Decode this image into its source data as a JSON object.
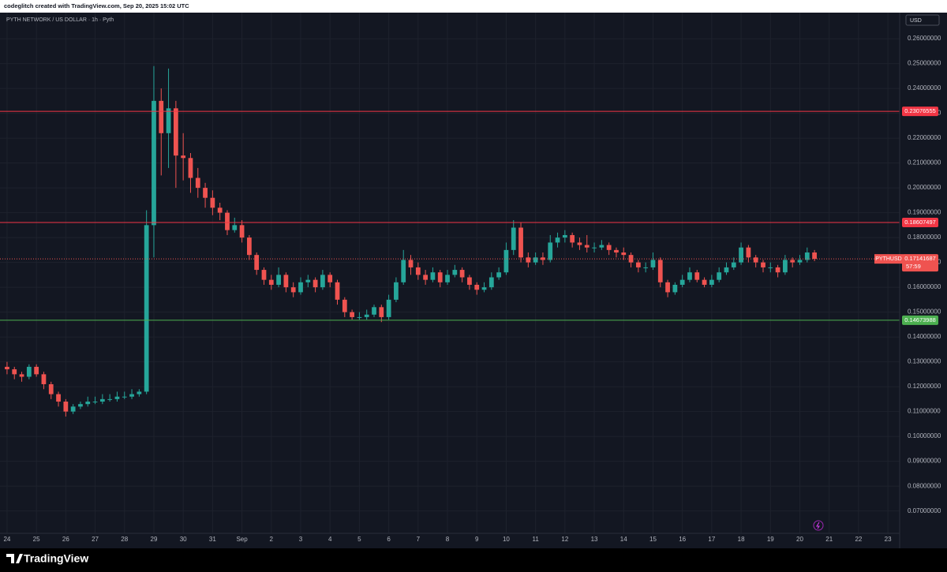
{
  "header": {
    "text": "codeglitch created with TradingView.com, Sep 20, 2025 15:02 UTC"
  },
  "footer": {
    "brand": "TradingView"
  },
  "chart_data": {
    "type": "candlestick",
    "title": "PYTH NETWORK / US DOLLAR · 1h · Pyth",
    "currency": "USD",
    "symbol": "PYTHUSD",
    "countdown": "57:59",
    "up_color": "#26a69a",
    "down_color": "#ef5350",
    "grid": true,
    "xlim": [
      -0.24,
      30.4
    ],
    "xticks": [
      {
        "value": 0,
        "label": "24"
      },
      {
        "value": 1,
        "label": "25"
      },
      {
        "value": 2,
        "label": "26"
      },
      {
        "value": 3,
        "label": "27"
      },
      {
        "value": 4,
        "label": "28"
      },
      {
        "value": 5,
        "label": "29"
      },
      {
        "value": 6,
        "label": "30"
      },
      {
        "value": 7,
        "label": "31"
      },
      {
        "value": 8,
        "label": "Sep"
      },
      {
        "value": 9,
        "label": "2"
      },
      {
        "value": 10,
        "label": "3"
      },
      {
        "value": 11,
        "label": "4"
      },
      {
        "value": 12,
        "label": "5"
      },
      {
        "value": 13,
        "label": "6"
      },
      {
        "value": 14,
        "label": "7"
      },
      {
        "value": 15,
        "label": "8"
      },
      {
        "value": 16,
        "label": "9"
      },
      {
        "value": 17,
        "label": "10"
      },
      {
        "value": 18,
        "label": "11"
      },
      {
        "value": 19,
        "label": "12"
      },
      {
        "value": 20,
        "label": "13"
      },
      {
        "value": 21,
        "label": "14"
      },
      {
        "value": 22,
        "label": "15"
      },
      {
        "value": 23,
        "label": "16"
      },
      {
        "value": 24,
        "label": "17"
      },
      {
        "value": 25,
        "label": "18"
      },
      {
        "value": 26,
        "label": "19"
      },
      {
        "value": 27,
        "label": "20"
      },
      {
        "value": 28,
        "label": "21"
      },
      {
        "value": 29,
        "label": "22"
      },
      {
        "value": 30,
        "label": "23"
      }
    ],
    "ylim": [
      0.061,
      0.2705
    ],
    "yticks": [
      {
        "value": 0.26,
        "label": "0.26000000"
      },
      {
        "value": 0.25,
        "label": "0.25000000"
      },
      {
        "value": 0.24,
        "label": "0.24000000"
      },
      {
        "value": 0.23,
        "label": "0.23000000"
      },
      {
        "value": 0.22,
        "label": "0.22000000"
      },
      {
        "value": 0.21,
        "label": "0.21000000"
      },
      {
        "value": 0.2,
        "label": "0.20000000"
      },
      {
        "value": 0.19,
        "label": "0.19000000"
      },
      {
        "value": 0.18,
        "label": "0.18000000"
      },
      {
        "value": 0.17,
        "label": "0.17000000"
      },
      {
        "value": 0.16,
        "label": "0.16000000"
      },
      {
        "value": 0.15,
        "label": "0.15000000"
      },
      {
        "value": 0.14,
        "label": "0.14000000"
      },
      {
        "value": 0.13,
        "label": "0.13000000"
      },
      {
        "value": 0.12,
        "label": "0.12000000"
      },
      {
        "value": 0.11,
        "label": "0.11000000"
      },
      {
        "value": 0.1,
        "label": "0.10000000"
      },
      {
        "value": 0.09,
        "label": "0.09000000"
      },
      {
        "value": 0.08,
        "label": "0.08000000"
      },
      {
        "value": 0.07,
        "label": "0.07000000"
      }
    ],
    "hlines": [
      {
        "value": 0.23076555,
        "color": "#f23645"
      },
      {
        "value": 0.18607497,
        "color": "#f23645"
      },
      {
        "value": 0.14673988,
        "color": "#4caf50"
      }
    ],
    "x": [
      0,
      0.25,
      0.5,
      0.75,
      1,
      1.25,
      1.5,
      1.75,
      2,
      2.25,
      2.5,
      2.75,
      3,
      3.25,
      3.5,
      3.75,
      4,
      4.25,
      4.5,
      4.75,
      5,
      5.25,
      5.5,
      5.75,
      6,
      6.25,
      6.5,
      6.75,
      7,
      7.25,
      7.5,
      7.75,
      8,
      8.25,
      8.5,
      8.75,
      9,
      9.25,
      9.5,
      9.75,
      10,
      10.25,
      10.5,
      10.75,
      11,
      11.25,
      11.5,
      11.75,
      12,
      12.25,
      12.5,
      12.75,
      13,
      13.25,
      13.5,
      13.75,
      14,
      14.25,
      14.5,
      14.75,
      15,
      15.25,
      15.5,
      15.75,
      16,
      16.25,
      16.5,
      16.75,
      17,
      17.25,
      17.5,
      17.75,
      18,
      18.25,
      18.5,
      18.75,
      19,
      19.25,
      19.5,
      19.75,
      20,
      20.25,
      20.5,
      20.75,
      21,
      21.25,
      21.5,
      21.75,
      22,
      22.25,
      22.5,
      22.75,
      23,
      23.25,
      23.5,
      23.75,
      24,
      24.25,
      24.5,
      24.75,
      25,
      25.25,
      25.5,
      25.75,
      26,
      26.25,
      26.5,
      26.75,
      27,
      27.25,
      27.5
    ],
    "candles": [
      [
        0.128,
        0.13,
        0.125,
        0.127
      ],
      [
        0.127,
        0.128,
        0.123,
        0.125
      ],
      [
        0.125,
        0.126,
        0.122,
        0.124
      ],
      [
        0.124,
        0.129,
        0.123,
        0.128
      ],
      [
        0.128,
        0.129,
        0.124,
        0.125
      ],
      [
        0.125,
        0.126,
        0.119,
        0.121
      ],
      [
        0.121,
        0.122,
        0.115,
        0.117
      ],
      [
        0.117,
        0.118,
        0.112,
        0.114
      ],
      [
        0.114,
        0.115,
        0.108,
        0.11
      ],
      [
        0.11,
        0.113,
        0.109,
        0.112
      ],
      [
        0.112,
        0.114,
        0.111,
        0.113
      ],
      [
        0.113,
        0.116,
        0.112,
        0.114
      ],
      [
        0.114,
        0.116,
        0.113,
        0.114
      ],
      [
        0.114,
        0.117,
        0.113,
        0.115
      ],
      [
        0.115,
        0.117,
        0.114,
        0.115
      ],
      [
        0.115,
        0.118,
        0.114,
        0.116
      ],
      [
        0.116,
        0.118,
        0.115,
        0.116
      ],
      [
        0.116,
        0.119,
        0.115,
        0.117
      ],
      [
        0.117,
        0.119,
        0.116,
        0.118
      ],
      [
        0.118,
        0.191,
        0.117,
        0.185
      ],
      [
        0.185,
        0.249,
        0.172,
        0.235
      ],
      [
        0.235,
        0.24,
        0.205,
        0.222
      ],
      [
        0.222,
        0.248,
        0.208,
        0.232
      ],
      [
        0.232,
        0.235,
        0.2,
        0.213
      ],
      [
        0.213,
        0.222,
        0.203,
        0.212
      ],
      [
        0.212,
        0.214,
        0.198,
        0.204
      ],
      [
        0.204,
        0.208,
        0.196,
        0.2
      ],
      [
        0.2,
        0.202,
        0.192,
        0.196
      ],
      [
        0.196,
        0.199,
        0.189,
        0.192
      ],
      [
        0.192,
        0.194,
        0.187,
        0.19
      ],
      [
        0.19,
        0.191,
        0.181,
        0.183
      ],
      [
        0.183,
        0.188,
        0.182,
        0.185
      ],
      [
        0.185,
        0.187,
        0.178,
        0.18
      ],
      [
        0.18,
        0.181,
        0.171,
        0.173
      ],
      [
        0.173,
        0.174,
        0.165,
        0.167
      ],
      [
        0.167,
        0.168,
        0.161,
        0.163
      ],
      [
        0.163,
        0.165,
        0.159,
        0.161
      ],
      [
        0.161,
        0.168,
        0.16,
        0.165
      ],
      [
        0.165,
        0.166,
        0.158,
        0.16
      ],
      [
        0.16,
        0.162,
        0.156,
        0.158
      ],
      [
        0.158,
        0.164,
        0.157,
        0.162
      ],
      [
        0.162,
        0.165,
        0.16,
        0.163
      ],
      [
        0.163,
        0.164,
        0.158,
        0.16
      ],
      [
        0.16,
        0.167,
        0.159,
        0.165
      ],
      [
        0.165,
        0.166,
        0.16,
        0.162
      ],
      [
        0.162,
        0.163,
        0.153,
        0.155
      ],
      [
        0.155,
        0.156,
        0.148,
        0.15
      ],
      [
        0.15,
        0.151,
        0.147,
        0.148
      ],
      [
        0.148,
        0.15,
        0.147,
        0.148
      ],
      [
        0.148,
        0.151,
        0.147,
        0.149
      ],
      [
        0.149,
        0.153,
        0.148,
        0.152
      ],
      [
        0.152,
        0.153,
        0.146,
        0.148
      ],
      [
        0.148,
        0.157,
        0.147,
        0.155
      ],
      [
        0.155,
        0.164,
        0.154,
        0.162
      ],
      [
        0.162,
        0.175,
        0.161,
        0.171
      ],
      [
        0.171,
        0.173,
        0.165,
        0.168
      ],
      [
        0.168,
        0.17,
        0.163,
        0.165
      ],
      [
        0.165,
        0.167,
        0.161,
        0.163
      ],
      [
        0.163,
        0.168,
        0.162,
        0.166
      ],
      [
        0.166,
        0.167,
        0.16,
        0.162
      ],
      [
        0.162,
        0.167,
        0.161,
        0.165
      ],
      [
        0.165,
        0.169,
        0.164,
        0.167
      ],
      [
        0.167,
        0.168,
        0.162,
        0.164
      ],
      [
        0.164,
        0.165,
        0.159,
        0.161
      ],
      [
        0.161,
        0.162,
        0.157,
        0.159
      ],
      [
        0.159,
        0.162,
        0.158,
        0.16
      ],
      [
        0.16,
        0.166,
        0.159,
        0.164
      ],
      [
        0.164,
        0.168,
        0.163,
        0.166
      ],
      [
        0.166,
        0.178,
        0.165,
        0.175
      ],
      [
        0.175,
        0.187,
        0.173,
        0.184
      ],
      [
        0.184,
        0.186,
        0.17,
        0.172
      ],
      [
        0.172,
        0.174,
        0.168,
        0.17
      ],
      [
        0.17,
        0.174,
        0.169,
        0.172
      ],
      [
        0.172,
        0.174,
        0.169,
        0.171
      ],
      [
        0.171,
        0.181,
        0.17,
        0.178
      ],
      [
        0.178,
        0.182,
        0.176,
        0.18
      ],
      [
        0.18,
        0.183,
        0.178,
        0.181
      ],
      [
        0.181,
        0.182,
        0.176,
        0.178
      ],
      [
        0.178,
        0.18,
        0.175,
        0.177
      ],
      [
        0.177,
        0.181,
        0.174,
        0.176
      ],
      [
        0.176,
        0.178,
        0.174,
        0.176
      ],
      [
        0.176,
        0.179,
        0.175,
        0.177
      ],
      [
        0.177,
        0.178,
        0.173,
        0.175
      ],
      [
        0.175,
        0.176,
        0.172,
        0.174
      ],
      [
        0.174,
        0.176,
        0.171,
        0.173
      ],
      [
        0.173,
        0.174,
        0.168,
        0.17
      ],
      [
        0.17,
        0.171,
        0.166,
        0.168
      ],
      [
        0.168,
        0.17,
        0.166,
        0.168
      ],
      [
        0.168,
        0.174,
        0.167,
        0.171
      ],
      [
        0.171,
        0.172,
        0.16,
        0.162
      ],
      [
        0.162,
        0.163,
        0.156,
        0.158
      ],
      [
        0.158,
        0.162,
        0.157,
        0.161
      ],
      [
        0.161,
        0.165,
        0.16,
        0.163
      ],
      [
        0.163,
        0.168,
        0.162,
        0.166
      ],
      [
        0.166,
        0.167,
        0.162,
        0.163
      ],
      [
        0.163,
        0.164,
        0.16,
        0.161
      ],
      [
        0.161,
        0.165,
        0.16,
        0.163
      ],
      [
        0.163,
        0.168,
        0.162,
        0.166
      ],
      [
        0.166,
        0.17,
        0.165,
        0.168
      ],
      [
        0.168,
        0.172,
        0.167,
        0.17
      ],
      [
        0.17,
        0.178,
        0.169,
        0.176
      ],
      [
        0.176,
        0.177,
        0.17,
        0.172
      ],
      [
        0.172,
        0.173,
        0.168,
        0.17
      ],
      [
        0.17,
        0.171,
        0.166,
        0.168
      ],
      [
        0.168,
        0.17,
        0.166,
        0.168
      ],
      [
        0.168,
        0.169,
        0.164,
        0.166
      ],
      [
        0.166,
        0.173,
        0.165,
        0.171
      ],
      [
        0.171,
        0.172,
        0.168,
        0.17
      ],
      [
        0.17,
        0.173,
        0.169,
        0.171
      ],
      [
        0.171,
        0.176,
        0.17,
        0.174
      ],
      [
        0.174,
        0.175,
        0.1705,
        0.17141687
      ]
    ]
  }
}
